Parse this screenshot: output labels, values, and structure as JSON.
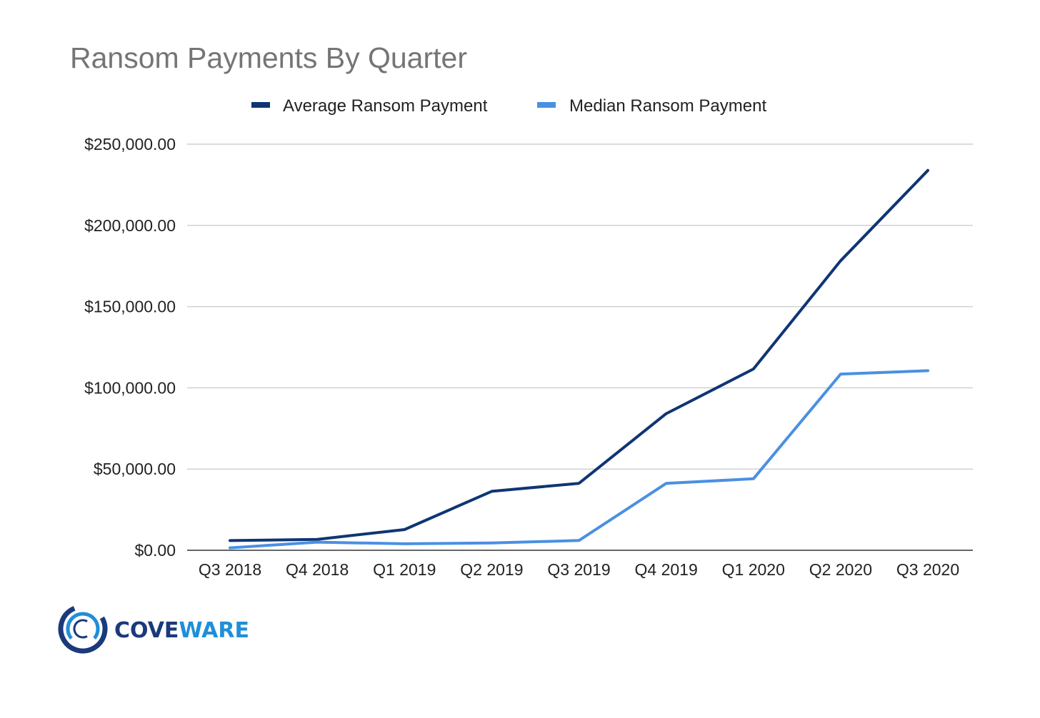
{
  "chart_data": {
    "type": "line",
    "title": "Ransom Payments By Quarter",
    "categories": [
      "Q3 2018",
      "Q4 2018",
      "Q1 2019",
      "Q2 2019",
      "Q3 2019",
      "Q4 2019",
      "Q1 2020",
      "Q2 2020",
      "Q3 2020"
    ],
    "series": [
      {
        "name": "Average Ransom Payment",
        "color": "#0f3573",
        "values": [
          5973,
          6733,
          12762,
          36295,
          41198,
          84116,
          111605,
          178254,
          233817
        ]
      },
      {
        "name": "Median Ransom Payment",
        "color": "#4a90e2",
        "values": [
          1500,
          5000,
          4000,
          4500,
          6000,
          41179,
          44021,
          108500,
          110532
        ]
      }
    ],
    "yticks": [
      "$0.00",
      "$50,000.00",
      "$100,000.00",
      "$150,000.00",
      "$200,000.00",
      "$250,000.00"
    ],
    "ylim": [
      0,
      250000
    ],
    "grid": true,
    "legend_position": "top"
  },
  "brand": {
    "name_part1": "COVE",
    "name_part2": "WARE",
    "color_dark": "#1a3a7a",
    "color_light": "#1f8fd8",
    "logo": "coveware-ring-logo"
  }
}
